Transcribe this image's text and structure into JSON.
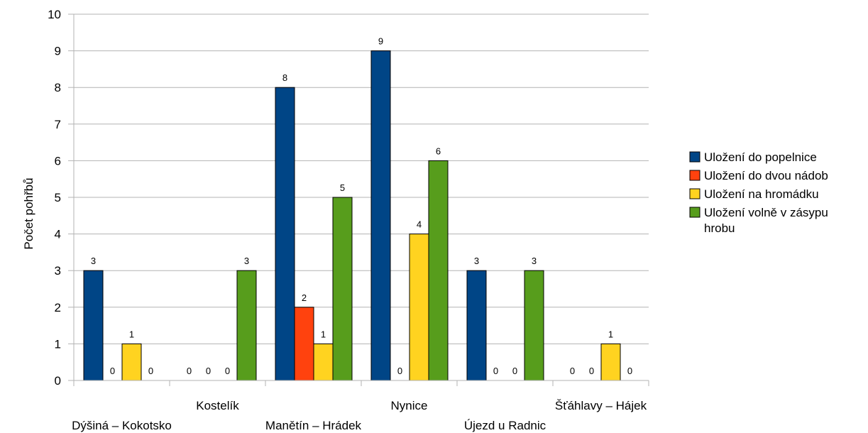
{
  "chart_data": {
    "type": "bar",
    "categories": [
      "Dýšiná – Kokotsko",
      "Kostelík",
      "Manětín – Hrádek",
      "Nynice",
      "Újezd u Radnic",
      "Šťáhlavy – Hájek"
    ],
    "series": [
      {
        "name": "Uložení do popelnice",
        "values": [
          3,
          0,
          8,
          9,
          3,
          0
        ],
        "color": "#004586"
      },
      {
        "name": "Uložení do dvou nádob",
        "values": [
          0,
          0,
          2,
          0,
          0,
          0
        ],
        "color": "#ff420e"
      },
      {
        "name": "Uložení na hromádku",
        "values": [
          1,
          0,
          1,
          4,
          0,
          1
        ],
        "color": "#ffd320"
      },
      {
        "name": "Uložení volně v zásypu hrobu",
        "values": [
          0,
          3,
          5,
          6,
          3,
          0
        ],
        "color": "#579d1c"
      }
    ],
    "ylabel": "Počet pohřbů",
    "xlabel": "",
    "title": "",
    "ylim": [
      0,
      10
    ],
    "yticks": [
      0,
      1,
      2,
      3,
      4,
      5,
      6,
      7,
      8,
      9,
      10
    ],
    "grid": true,
    "legend": "right"
  }
}
